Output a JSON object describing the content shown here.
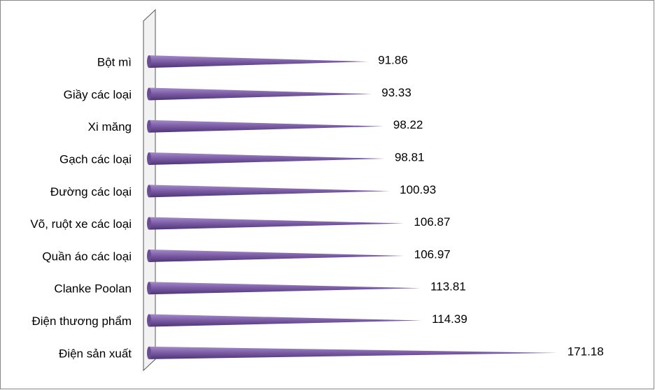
{
  "chart_data": {
    "type": "bar",
    "orientation": "horizontal",
    "categories": [
      "Bột mì",
      "Giầy các loại",
      "Xi măng",
      "Gạch các loại",
      "Đường các loại",
      "Võ, ruột xe các loại",
      "Quần áo các loại",
      "Clanke Poolan",
      "Điện thương phẩm",
      "Điện sản xuất"
    ],
    "values": [
      91.86,
      93.33,
      98.22,
      98.81,
      100.93,
      106.87,
      106.97,
      113.81,
      114.39,
      171.18
    ],
    "color": "#7e5fa8",
    "xlim": [
      0,
      200
    ]
  }
}
